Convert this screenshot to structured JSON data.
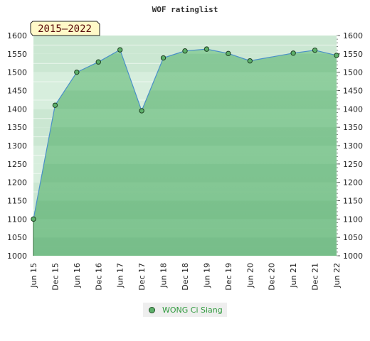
{
  "chart_data": {
    "type": "area",
    "title": "WOF ratinglist",
    "period_badge": "2015–2022",
    "xlabels": [
      "Jun 15",
      "Dec 15",
      "Jun 16",
      "Dec 16",
      "Jun 17",
      "Dec 17",
      "Jun 18",
      "Dec 18",
      "Jun 19",
      "Dec 19",
      "Jun 20",
      "Dec 20",
      "Jun 21",
      "Dec 21",
      "Jun 22"
    ],
    "yticks": [
      1000,
      1050,
      1100,
      1150,
      1200,
      1250,
      1300,
      1350,
      1400,
      1450,
      1500,
      1550,
      1600
    ],
    "ylim": [
      1000,
      1600
    ],
    "grid": true,
    "legend_position": "bottom-center",
    "series": [
      {
        "name": "WONG Ci Siang",
        "color": "#5db06a",
        "line_color": "#4a90c8",
        "points": [
          {
            "x": "Jun 15",
            "y": 1100
          },
          {
            "x": "Dec 15",
            "y": 1410
          },
          {
            "x": "Jun 16",
            "y": 1500
          },
          {
            "x": "Dec 16",
            "y": 1528
          },
          {
            "x": "Jun 17",
            "y": 1561
          },
          {
            "x": "Dec 17",
            "y": 1395
          },
          {
            "x": "Jun 18",
            "y": 1539
          },
          {
            "x": "Dec 18",
            "y": 1558
          },
          {
            "x": "Jun 19",
            "y": 1563
          },
          {
            "x": "Dec 19",
            "y": 1551
          },
          {
            "x": "Jun 20",
            "y": 1531
          },
          {
            "x": "Jun 21",
            "y": 1552
          },
          {
            "x": "Dec 21",
            "y": 1560
          },
          {
            "x": "Jun 22",
            "y": 1546
          }
        ]
      }
    ]
  }
}
